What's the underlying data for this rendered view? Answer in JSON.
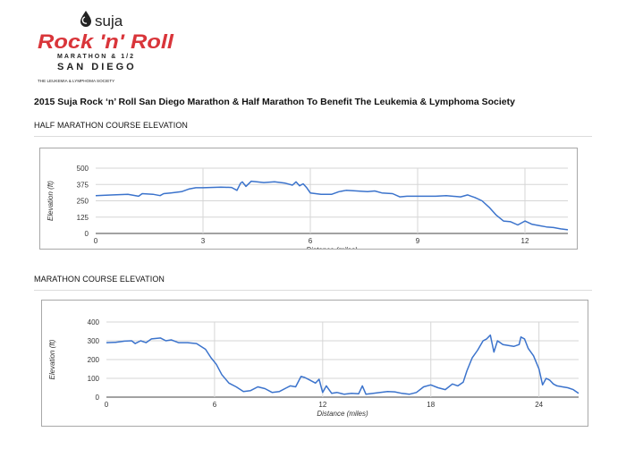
{
  "logo": {
    "brand": "suja",
    "name_line1": "Rock 'n' Roll",
    "name_line2": "MARATHON & 1/2",
    "name_line3": "SAN DIEGO",
    "charity": "THE LEUKEMIA & LYMPHOMA SOCIETY",
    "colors": {
      "red": "#d9353a",
      "dark": "#222222"
    }
  },
  "page_title": "2015 Suja Rock ‘n’ Roll San Diego Marathon & Half Marathon To Benefit The Leukemia & Lymphoma Society",
  "half_section_title": "HALF MARATHON COURSE ELEVATION",
  "full_section_title": "MARATHON COURSE ELEVATION",
  "chart_data": [
    {
      "type": "line",
      "xlabel": "Distance (miles)",
      "ylabel": "Elevation (ft)",
      "xlim": [
        0,
        13.2
      ],
      "ylim": [
        0,
        500
      ],
      "xticks": [
        0,
        3,
        6,
        9,
        12
      ],
      "yticks": [
        0,
        125,
        250,
        375,
        500
      ],
      "grid": true,
      "line_color": "#3b73cc",
      "series": [
        {
          "x": [
            0,
            0.5,
            0.9,
            1.2,
            1.3,
            1.6,
            1.8,
            1.9,
            2.1,
            2.4,
            2.6,
            2.8,
            3.0,
            3.5,
            3.8,
            3.95,
            4.05,
            4.1,
            4.2,
            4.35,
            4.5,
            4.7,
            5.0,
            5.3,
            5.5,
            5.6,
            5.7,
            5.8,
            5.9,
            6.0,
            6.3,
            6.6,
            6.8,
            7.0,
            7.3,
            7.6,
            7.8,
            8.0,
            8.3,
            8.5,
            8.7,
            9.0,
            9.5,
            9.8,
            10.2,
            10.4,
            10.5,
            10.6,
            10.8,
            11.0,
            11.2,
            11.4,
            11.6,
            11.8,
            12.0,
            12.2,
            12.4,
            12.6,
            12.8,
            13.0,
            13.2
          ],
          "y": [
            290,
            295,
            300,
            285,
            305,
            300,
            290,
            305,
            310,
            320,
            340,
            350,
            350,
            355,
            352,
            330,
            385,
            395,
            360,
            400,
            395,
            390,
            395,
            385,
            370,
            395,
            365,
            380,
            350,
            310,
            300,
            300,
            320,
            330,
            325,
            320,
            325,
            310,
            305,
            280,
            285,
            285,
            285,
            290,
            280,
            295,
            285,
            275,
            250,
            200,
            140,
            95,
            90,
            65,
            95,
            70,
            60,
            50,
            45,
            35,
            28
          ]
        }
      ]
    },
    {
      "type": "line",
      "xlabel": "Distance (miles)",
      "ylabel": "Elevation (ft)",
      "xlim": [
        0,
        26.2
      ],
      "ylim": [
        0,
        400
      ],
      "xticks": [
        0,
        6,
        12,
        18,
        24
      ],
      "yticks": [
        0,
        100,
        200,
        300,
        400
      ],
      "grid": true,
      "line_color": "#3b73cc",
      "series": [
        {
          "x": [
            0,
            0.5,
            1.0,
            1.4,
            1.6,
            1.9,
            2.2,
            2.5,
            3.0,
            3.3,
            3.6,
            4.0,
            4.5,
            5.0,
            5.5,
            5.8,
            6.1,
            6.4,
            6.8,
            7.2,
            7.6,
            8.0,
            8.4,
            8.8,
            9.2,
            9.6,
            10.0,
            10.2,
            10.5,
            10.8,
            11.0,
            11.3,
            11.6,
            11.8,
            12.0,
            12.2,
            12.5,
            12.8,
            13.2,
            13.6,
            14.0,
            14.2,
            14.4,
            14.8,
            15.2,
            15.6,
            16.0,
            16.4,
            16.8,
            17.2,
            17.6,
            18.0,
            18.4,
            18.8,
            19.2,
            19.5,
            19.8,
            20.0,
            20.3,
            20.6,
            20.9,
            21.1,
            21.3,
            21.5,
            21.7,
            22.0,
            22.3,
            22.6,
            22.9,
            23.0,
            23.2,
            23.4,
            23.7,
            24.0,
            24.2,
            24.4,
            24.6,
            24.8,
            25.0,
            25.3,
            25.6,
            25.9,
            26.2
          ],
          "y": [
            290,
            292,
            298,
            300,
            285,
            300,
            290,
            310,
            315,
            300,
            305,
            290,
            290,
            285,
            255,
            210,
            175,
            120,
            75,
            55,
            30,
            35,
            55,
            45,
            25,
            30,
            50,
            60,
            55,
            110,
            105,
            90,
            75,
            95,
            25,
            60,
            20,
            25,
            15,
            20,
            18,
            60,
            15,
            20,
            25,
            30,
            28,
            20,
            15,
            25,
            55,
            65,
            50,
            40,
            70,
            60,
            80,
            140,
            210,
            250,
            300,
            310,
            330,
            240,
            300,
            280,
            275,
            270,
            280,
            320,
            310,
            260,
            220,
            150,
            65,
            100,
            90,
            70,
            60,
            55,
            50,
            40,
            20
          ]
        }
      ]
    }
  ]
}
